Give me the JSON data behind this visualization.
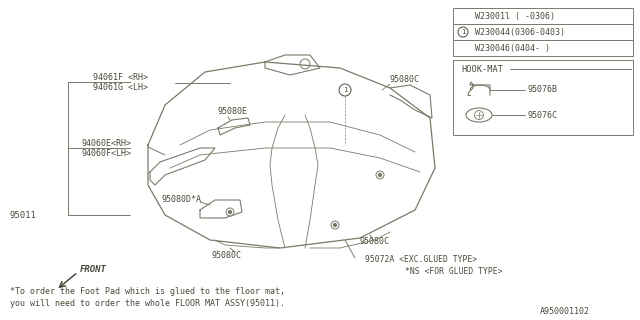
{
  "bg_color": "#ffffff",
  "line_color": "#7a7a6a",
  "text_color": "#4a4a3a",
  "table_entries": [
    "W23001l ( -0306)",
    "W230044(0306-0403)",
    "W230046(0404- )"
  ],
  "table_circled_row": 1,
  "hook_mat_label": "HOOK-MAT",
  "hook_parts": [
    "95076B",
    "95076C"
  ],
  "label_94061F": "94061F <RH>",
  "label_94061G": "94061G <LH>",
  "label_94060E": "94060E<RH>",
  "label_94060F": "94060F<LH>",
  "label_95011": "95011",
  "label_95080E": "95080E",
  "label_95080C": "95080C",
  "label_95080D": "95080D*A",
  "label_95072A": "95072A <EXC.GLUED TYPE>",
  "label_ns": "*NS <FOR GLUED TYPE>",
  "footnote1": "*To order the Foot Pad which is glued to the floor mat,",
  "footnote2": "you will need to order the whole FLOOR MAT ASSY(95011).",
  "part_number": "A950001102"
}
